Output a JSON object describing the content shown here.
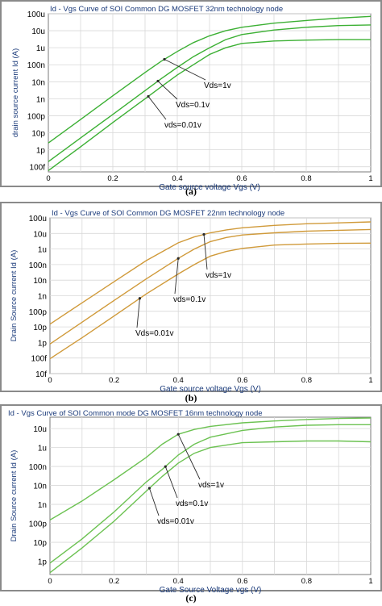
{
  "figure": {
    "captions": [
      "(a)",
      "(b)",
      "(c)"
    ]
  },
  "chart_data": [
    {
      "type": "line",
      "title": "Id - Vgs Curve  of SOI Common DG MOSFET 32nm technology node",
      "xlabel": "Gate source voltage Vgs (V)",
      "ylabel": "drain source current Id (A)",
      "xlim": [
        0,
        1
      ],
      "ylim_log10": [
        -13.3,
        -4
      ],
      "y_scale": "log",
      "grid": true,
      "line_color": "#3cb034",
      "x_ticks": [
        "0",
        "0.2",
        "0.4",
        "0.6",
        "0.8",
        "1"
      ],
      "y_ticks": [
        "100u",
        "10u",
        "1u",
        "100n",
        "10n",
        "1n",
        "100p",
        "10p",
        "1p",
        "100f"
      ],
      "annotations": [
        "Vds=1v",
        "Vds=0.1v",
        "vds=0.01v"
      ],
      "series": [
        {
          "name": "Vds=1v",
          "x": [
            0,
            0.1,
            0.2,
            0.3,
            0.35,
            0.4,
            0.45,
            0.5,
            0.55,
            0.6,
            0.7,
            0.8,
            0.9,
            1.0
          ],
          "y": [
            2.5e-12,
            6e-11,
            1.5e-09,
            3.5e-08,
            1.6e-07,
            6e-07,
            2e-06,
            5e-06,
            1e-05,
            1.6e-05,
            2.8e-05,
            4e-05,
            5.5e-05,
            7e-05
          ]
        },
        {
          "name": "Vds=0.1v",
          "x": [
            0,
            0.1,
            0.2,
            0.3,
            0.35,
            0.4,
            0.45,
            0.5,
            0.55,
            0.6,
            0.7,
            0.8,
            0.9,
            1.0
          ],
          "y": [
            2e-13,
            5e-12,
            1.2e-10,
            3e-09,
            1.5e-08,
            7e-08,
            3e-07,
            1e-06,
            3e-06,
            6e-06,
            1.1e-05,
            1.6e-05,
            2e-05,
            2.2e-05
          ]
        },
        {
          "name": "vds=0.01v",
          "x": [
            0,
            0.1,
            0.2,
            0.3,
            0.35,
            0.4,
            0.45,
            0.5,
            0.55,
            0.6,
            0.7,
            0.8,
            0.9,
            1.0
          ],
          "y": [
            6e-14,
            1.5e-12,
            4e-11,
            1e-09,
            5e-09,
            2.5e-08,
            1e-07,
            4e-07,
            1e-06,
            1.8e-06,
            2.5e-06,
            2.8e-06,
            3e-06,
            3e-06
          ]
        }
      ]
    },
    {
      "type": "line",
      "title": "Id - Vgs Curve  of SOI Common DG MOSFET 22nm technology node",
      "xlabel": "Gate source voltage Vgs (V)",
      "ylabel": "Drain Source current Id (A)",
      "xlim": [
        0,
        1
      ],
      "ylim_log10": [
        -14,
        -4
      ],
      "y_scale": "log",
      "grid": true,
      "line_color": "#d09a3a",
      "x_ticks": [
        "0",
        "0.2",
        "0.4",
        "0.6",
        "0.8",
        "1"
      ],
      "y_ticks": [
        "100u",
        "10u",
        "1u",
        "100n",
        "10n",
        "1n",
        "100p",
        "10p",
        "1p",
        "100f",
        "10f"
      ],
      "annotations": [
        "vds=1v",
        "vds=0.1v",
        "Vds=0.01v"
      ],
      "series": [
        {
          "name": "vds=1v",
          "x": [
            0,
            0.1,
            0.2,
            0.3,
            0.4,
            0.45,
            0.5,
            0.55,
            0.6,
            0.7,
            0.8,
            0.9,
            1.0
          ],
          "y": [
            1.5e-11,
            3.5e-10,
            8e-09,
            1.8e-07,
            2.5e-06,
            6e-06,
            1.1e-05,
            1.7e-05,
            2.3e-05,
            3.3e-05,
            4.2e-05,
            4.8e-05,
            5.5e-05
          ]
        },
        {
          "name": "vds=0.1v",
          "x": [
            0,
            0.1,
            0.2,
            0.3,
            0.4,
            0.45,
            0.5,
            0.55,
            0.6,
            0.7,
            0.8,
            0.9,
            1.0
          ],
          "y": [
            8e-13,
            2e-11,
            5e-10,
            1.2e-08,
            2.5e-07,
            1e-06,
            3e-06,
            5.5e-06,
            8e-06,
            1.1e-05,
            1.4e-05,
            1.6e-05,
            1.8e-05
          ]
        },
        {
          "name": "Vds=0.01v",
          "x": [
            0,
            0.1,
            0.2,
            0.3,
            0.4,
            0.45,
            0.5,
            0.55,
            0.6,
            0.7,
            0.8,
            0.9,
            1.0
          ],
          "y": [
            9e-14,
            2e-12,
            5e-11,
            1.3e-09,
            2.5e-08,
            1e-07,
            3.5e-07,
            7e-07,
            1.1e-06,
            1.8e-06,
            2.1e-06,
            2.3e-06,
            2.4e-06
          ]
        }
      ]
    },
    {
      "type": "line",
      "title": "Id - Vgs Curve  of SOI Common mode DG MOSFET 16nm technology node",
      "xlabel": "Gate Source Voltage vgs  (V)",
      "ylabel": "Drain Source current Id (A)",
      "xlim": [
        0,
        1
      ],
      "ylim_log10": [
        -12.7,
        -4.4
      ],
      "y_scale": "log",
      "grid": true,
      "line_color": "#6cc252",
      "x_ticks": [
        "0",
        "0.2",
        "0.4",
        "0.6",
        "0.8",
        "1"
      ],
      "y_ticks": [
        "10u",
        "1u",
        "100n",
        "10n",
        "1n",
        "100p",
        "10p",
        "1p"
      ],
      "annotations": [
        "vds=1v",
        "vds=0.1v",
        "vds=0.01v"
      ],
      "series": [
        {
          "name": "vds=1v",
          "x": [
            0,
            0.1,
            0.2,
            0.3,
            0.35,
            0.4,
            0.45,
            0.5,
            0.6,
            0.7,
            0.8,
            0.9,
            1.0
          ],
          "y": [
            1.5e-10,
            1.5e-09,
            2e-08,
            3e-07,
            1.5e-06,
            5e-06,
            9e-06,
            1.3e-05,
            2e-05,
            2.5e-05,
            3e-05,
            3.4e-05,
            3.6e-05
          ]
        },
        {
          "name": "vds=0.1v",
          "x": [
            0,
            0.1,
            0.2,
            0.3,
            0.35,
            0.4,
            0.45,
            0.5,
            0.6,
            0.7,
            0.8,
            0.9,
            1.0
          ],
          "y": [
            8e-13,
            1.5e-11,
            4e-10,
            1.5e-08,
            7e-08,
            4e-07,
            1.5e-06,
            3.5e-06,
            8e-06,
            1.2e-05,
            1.5e-05,
            1.6e-05,
            1.6e-05
          ]
        },
        {
          "name": "vds=0.01v",
          "x": [
            0,
            0.1,
            0.2,
            0.3,
            0.35,
            0.4,
            0.45,
            0.5,
            0.6,
            0.7,
            0.8,
            0.9,
            1.0
          ],
          "y": [
            2.5e-13,
            5e-12,
            1.3e-10,
            5e-09,
            3e-08,
            1.5e-07,
            5e-07,
            1e-06,
            1.8e-06,
            2e-06,
            2.2e-06,
            2.2e-06,
            2e-06
          ]
        }
      ]
    }
  ]
}
